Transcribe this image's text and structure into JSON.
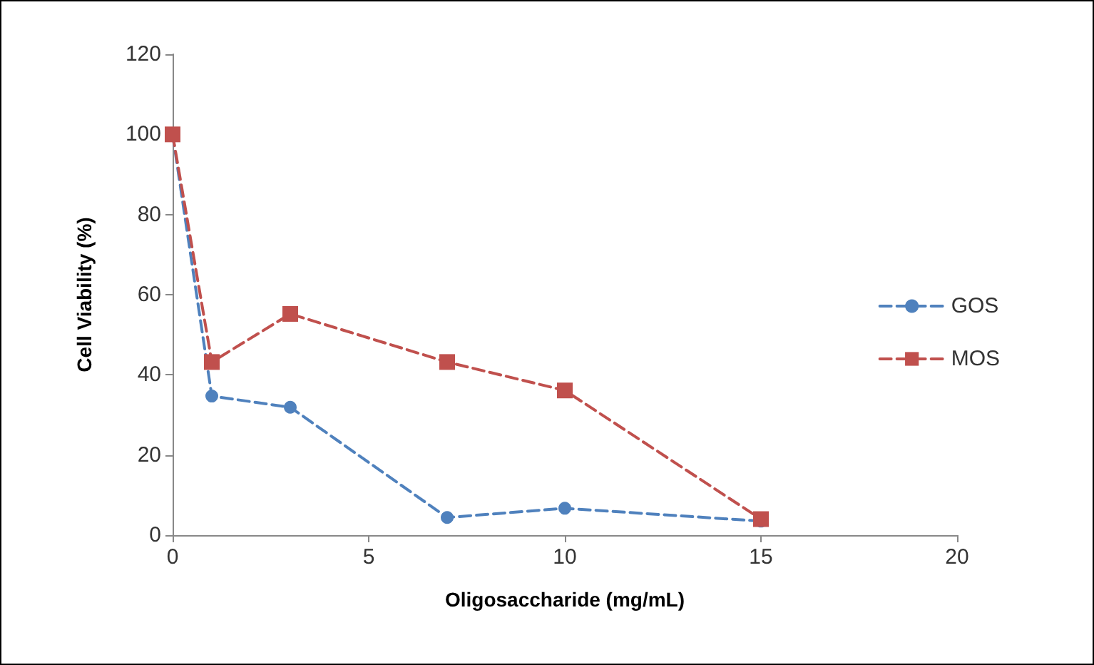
{
  "chart_data": {
    "type": "line",
    "xlabel": "Oligosaccharide (mg/mL)",
    "ylabel": "Cell Viability (%)",
    "xlim": [
      0,
      20
    ],
    "xticks": [
      0,
      5,
      10,
      15,
      20
    ],
    "ylim": [
      0,
      120
    ],
    "yticks": [
      0,
      20,
      40,
      60,
      80,
      100,
      120
    ],
    "grid": false,
    "legend": "right",
    "line_style": "dashed",
    "series": [
      {
        "name": "GOS",
        "color": "#4f81bd",
        "marker": "circle",
        "x": [
          0,
          1,
          3,
          7,
          10,
          15
        ],
        "values": [
          100,
          34.7,
          31.9,
          4.4,
          6.7,
          3.5
        ]
      },
      {
        "name": "MOS",
        "color": "#c0504d",
        "marker": "square",
        "x": [
          0,
          1,
          3,
          7,
          10,
          15
        ],
        "values": [
          100,
          43.2,
          55.2,
          43.2,
          36.1,
          4
        ]
      }
    ]
  }
}
